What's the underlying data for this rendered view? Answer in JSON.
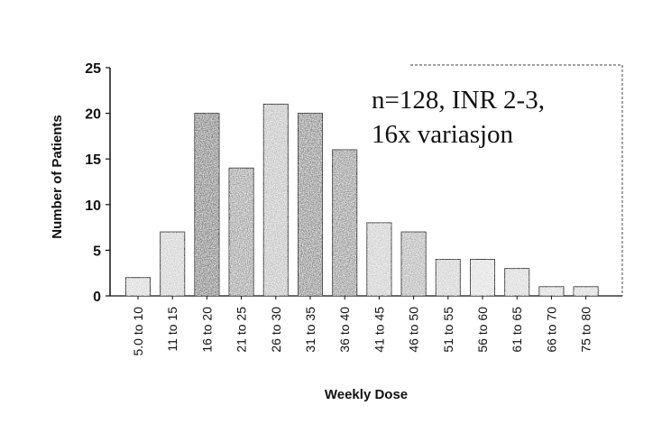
{
  "chart_data": {
    "type": "bar",
    "xlabel": "Weekly Dose",
    "ylabel": "Number of Patients",
    "ylim": [
      0,
      25
    ],
    "yticks": [
      "0",
      "5",
      "10",
      "15",
      "20",
      "25"
    ],
    "categories": [
      "5.0 to 10",
      "11 to 15",
      "16 to 20",
      "21 to 25",
      "26 to 30",
      "31 to 35",
      "36 to 40",
      "41 to 45",
      "46 to 50",
      "51 to 55",
      "56 to 60",
      "61 to 65",
      "66 to 70",
      "75 to 80"
    ],
    "values": [
      2,
      7,
      20,
      14,
      21,
      20,
      16,
      8,
      7,
      4,
      4,
      3,
      1,
      1
    ],
    "shades": [
      "#d2d2d2",
      "#c8c8c8",
      "#6e6e6e",
      "#909090",
      "#b6b6b6",
      "#7a7a7a",
      "#858585",
      "#c4c4c4",
      "#a8a8a8",
      "#c8c8c8",
      "#dadada",
      "#d2d2d2",
      "#d6d6d6",
      "#d4d4d4"
    ],
    "annotation": [
      "n=128, INR 2-3,",
      "16x variasjon"
    ],
    "grid": false
  }
}
